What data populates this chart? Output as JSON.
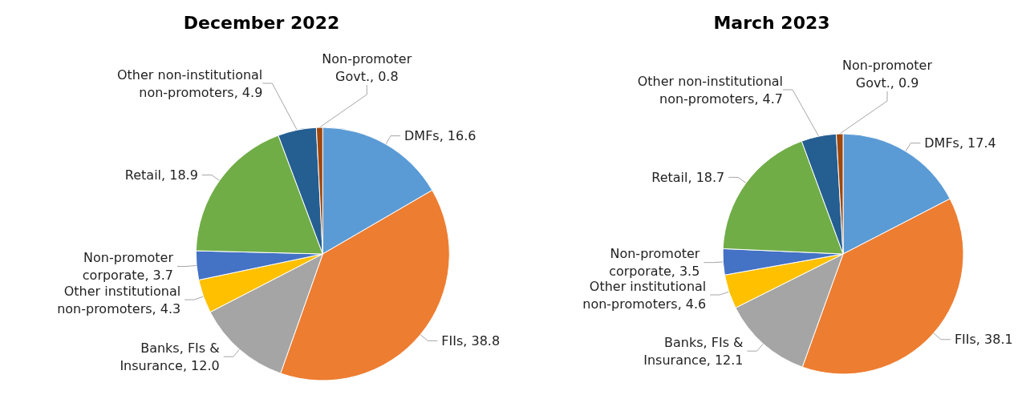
{
  "chart_data": [
    {
      "type": "pie",
      "title": "December 2022",
      "categories": [
        "DMFs",
        "FIIs",
        "Banks, FIs & Insurance",
        "Other institutional non-promoters",
        "Non-promoter corporate",
        "Retail",
        "Other non-institutional non-promoters",
        "Non-promoter Govt."
      ],
      "values": [
        16.6,
        38.8,
        12.0,
        4.3,
        3.7,
        18.9,
        4.9,
        0.8
      ],
      "value_labels": [
        "16.6",
        "38.8",
        "12.0",
        "4.3",
        "3.7",
        "18.9",
        "4.9",
        "0.8"
      ],
      "colors": [
        "#5b9bd5",
        "#ed7d31",
        "#a5a5a5",
        "#ffc000",
        "#4472c4",
        "#70ad47",
        "#255e91",
        "#9e480e"
      ],
      "legend": false
    },
    {
      "type": "pie",
      "title": "March 2023",
      "categories": [
        "DMFs",
        "FIIs",
        "Banks, FIs & Insurance",
        "Other institutional non-promoters",
        "Non-promoter corporate",
        "Retail",
        "Other non-institutional non-promoters",
        "Non-promoter Govt."
      ],
      "values": [
        17.4,
        38.1,
        12.1,
        4.6,
        3.5,
        18.7,
        4.7,
        0.9
      ],
      "value_labels": [
        "17.4",
        "38.1",
        "12.1",
        "4.6",
        "3.5",
        "18.7",
        "4.7",
        "0.9"
      ],
      "colors": [
        "#5b9bd5",
        "#ed7d31",
        "#a5a5a5",
        "#ffc000",
        "#4472c4",
        "#70ad47",
        "#255e91",
        "#9e480e"
      ],
      "legend": false
    }
  ]
}
